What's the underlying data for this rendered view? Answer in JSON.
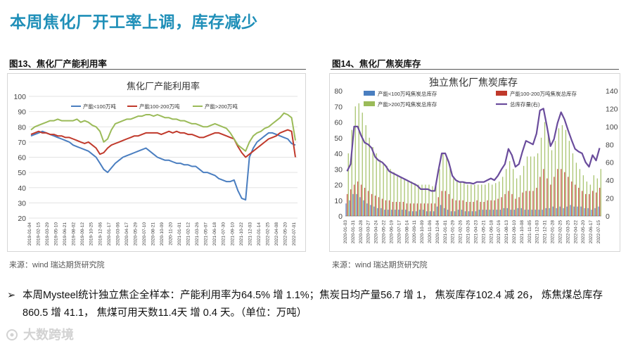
{
  "header": {
    "title": "本周焦化厂开工率上调，库存减少"
  },
  "figures": [
    {
      "caption": "图13、焦化厂产能利用率",
      "source": "来源：wind   瑞达期货研究院"
    },
    {
      "caption": "图14、焦化厂焦炭库存",
      "source": "来源：wind   瑞达期货研究院"
    }
  ],
  "bullet": {
    "line1": "本周Mysteel统计独立焦企全样本：产能利用率为64.5% 增 1.1%；焦炭日均产量56.7 增 1， 焦炭库存102.4 减 26， 炼焦煤总库存",
    "line2": "860.5 增 41.1， 焦煤可用天数11.4天 增 0.4 天。（单位：万吨）"
  },
  "watermark": "大数跨境",
  "chart_data": [
    {
      "type": "line",
      "title": "焦化厂产能利用率",
      "ylim": [
        20,
        100
      ],
      "yticks": [
        "20",
        "30",
        "40",
        "50",
        "60",
        "70",
        "80",
        "90",
        "100"
      ],
      "xticks": [
        "2019-01-04",
        "2019-02-15",
        "2019-03-29",
        "2019-05-10",
        "2019-06-21",
        "2019-08-02",
        "2019-09-12",
        "2019-10-25",
        "2019-12-06",
        "2020-01-17",
        "2020-03-06",
        "2020-04-17",
        "2020-05-29",
        "2020-07-10",
        "2020-08-21",
        "2020-10-09",
        "2020-11-20",
        "2021-01-01",
        "2021-02-12",
        "2021-03-26",
        "2021-05-07",
        "2021-06-18",
        "2021-07-30",
        "2021-09-10",
        "2021-10-22",
        "2021-12-03",
        "2022-01-14",
        "2022-02-25",
        "2022-04-08",
        "2022-05-20",
        "2022-07-01"
      ],
      "series": [
        {
          "name": "产能<100万吨",
          "color": "#4a7ec0",
          "values": [
            74,
            75,
            76,
            77,
            76,
            75,
            74,
            73,
            72,
            71,
            70,
            68,
            67,
            66,
            65,
            64,
            62,
            60,
            56,
            52,
            50,
            53,
            56,
            58,
            60,
            61,
            62,
            63,
            64,
            65,
            66,
            64,
            62,
            60,
            59,
            58,
            58,
            57,
            56,
            56,
            55,
            55,
            54,
            54,
            52,
            50,
            50,
            49,
            48,
            46,
            45,
            44,
            44,
            45,
            38,
            33,
            32,
            60,
            66,
            70,
            72,
            74,
            76,
            76,
            75,
            74,
            73,
            72,
            69,
            68
          ]
        },
        {
          "name": "产能100-200万吨",
          "color": "#c0392b",
          "values": [
            75,
            76,
            77,
            76,
            76,
            75,
            75,
            74,
            74,
            73,
            73,
            72,
            71,
            70,
            69,
            70,
            68,
            66,
            62,
            63,
            66,
            68,
            69,
            70,
            71,
            72,
            73,
            74,
            74,
            75,
            76,
            76,
            76,
            76,
            75,
            76,
            77,
            76,
            77,
            76,
            76,
            75,
            75,
            74,
            73,
            73,
            74,
            75,
            76,
            76,
            75,
            74,
            73,
            72,
            67,
            63,
            60,
            62,
            64,
            66,
            68,
            70,
            72,
            73,
            74,
            76,
            77,
            78,
            77,
            60
          ]
        },
        {
          "name": "产能>200万吨",
          "color": "#9bbb59",
          "values": [
            78,
            80,
            81,
            82,
            83,
            84,
            84,
            85,
            84,
            84,
            84,
            84,
            85,
            83,
            84,
            83,
            81,
            80,
            77,
            70,
            72,
            78,
            82,
            83,
            84,
            85,
            85,
            86,
            87,
            87,
            88,
            88,
            87,
            88,
            87,
            86,
            86,
            85,
            85,
            84,
            84,
            83,
            82,
            82,
            81,
            80,
            80,
            81,
            82,
            81,
            80,
            79,
            76,
            72,
            68,
            66,
            64,
            70,
            74,
            76,
            77,
            79,
            80,
            82,
            84,
            86,
            89,
            88,
            86,
            71
          ]
        }
      ]
    },
    {
      "type": "bar",
      "title": "独立焦化厂焦炭库存",
      "ylim": [
        0,
        80
      ],
      "ylim_right": [
        0,
        140
      ],
      "yticks": [
        "0",
        "10",
        "20",
        "30",
        "40",
        "50",
        "60",
        "70",
        "80"
      ],
      "yticks_right": [
        "0",
        "20",
        "40",
        "60",
        "80",
        "100",
        "120",
        "140"
      ],
      "xticks": [
        "2020-01-03",
        "2020-01-31",
        "2020-02-28",
        "2020-03-27",
        "2020-04-24",
        "2020-05-22",
        "2020-06-19",
        "2020-07-17",
        "2020-08-14",
        "2020-09-11",
        "2020-10-09",
        "2020-11-06",
        "2020-12-04",
        "2021-01-01",
        "2021-01-29",
        "2021-02-26",
        "2021-03-26",
        "2021-04-23",
        "2021-05-21",
        "2021-06-18",
        "2021-07-16",
        "2021-08-13",
        "2021-09-10",
        "2021-10-08",
        "2021-11-05",
        "2021-12-03",
        "2021-12-31",
        "2022-01-28",
        "2022-02-25",
        "2022-03-25",
        "2022-04-22",
        "2022-05-20",
        "2022-06-17",
        "2022-07-15"
      ],
      "series": [
        {
          "name": "产能<100万吨焦炭总库存",
          "color": "#4a7ec0",
          "axis": "left",
          "values": [
            8,
            10,
            14,
            14,
            12,
            10,
            8,
            7,
            6,
            5,
            5,
            4,
            4,
            4,
            4,
            4,
            4,
            4,
            3,
            3,
            3,
            4,
            4,
            3,
            3,
            3,
            6,
            7,
            5,
            4,
            3,
            3,
            4,
            4,
            3,
            3,
            3,
            3,
            4,
            4,
            4,
            4,
            4,
            4,
            4,
            5,
            5,
            4,
            4,
            5,
            5,
            4,
            4,
            4,
            4,
            4,
            4,
            5,
            5,
            6,
            5,
            6,
            5,
            6,
            7,
            6,
            6,
            6,
            5,
            5,
            4,
            5,
            6
          ]
        },
        {
          "name": "产能100-200万吨焦炭总库存",
          "color": "#c0392b",
          "axis": "left",
          "values": [
            14,
            17,
            20,
            22,
            20,
            18,
            16,
            14,
            13,
            12,
            11,
            10,
            10,
            9,
            9,
            9,
            9,
            8,
            8,
            8,
            8,
            8,
            8,
            8,
            8,
            8,
            12,
            16,
            16,
            14,
            11,
            10,
            10,
            10,
            9,
            9,
            9,
            10,
            9,
            9,
            10,
            10,
            10,
            11,
            12,
            14,
            16,
            14,
            11,
            12,
            15,
            16,
            16,
            16,
            18,
            25,
            30,
            24,
            20,
            25,
            30,
            30,
            28,
            25,
            22,
            20,
            18,
            16,
            14,
            14,
            16,
            15,
            18
          ]
        },
        {
          "name": "产能>200万吨焦炭总库存",
          "color": "#9bbb59",
          "axis": "left",
          "values": [
            40,
            55,
            70,
            72,
            66,
            58,
            50,
            44,
            40,
            36,
            34,
            32,
            30,
            28,
            26,
            25,
            24,
            22,
            22,
            21,
            20,
            20,
            20,
            20,
            19,
            19,
            30,
            40,
            38,
            30,
            24,
            22,
            22,
            22,
            20,
            20,
            20,
            20,
            20,
            20,
            21,
            20,
            21,
            22,
            25,
            30,
            35,
            30,
            24,
            26,
            32,
            38,
            38,
            38,
            40,
            50,
            60,
            52,
            42,
            48,
            56,
            58,
            55,
            48,
            40,
            34,
            30,
            26,
            22,
            20,
            26,
            24,
            30
          ]
        },
        {
          "name": "总库存量(右)",
          "color": "#6a4c9c",
          "axis": "right",
          "values": [
            50,
            58,
            100,
            100,
            90,
            82,
            80,
            76,
            66,
            62,
            60,
            56,
            50,
            48,
            46,
            44,
            42,
            40,
            38,
            36,
            34,
            30,
            30,
            30,
            28,
            28,
            50,
            70,
            70,
            60,
            45,
            40,
            38,
            38,
            37,
            37,
            36,
            38,
            38,
            38,
            40,
            42,
            40,
            45,
            52,
            58,
            75,
            68,
            55,
            58,
            72,
            84,
            82,
            80,
            92,
            118,
            120,
            100,
            78,
            86,
            104,
            116,
            108,
            96,
            85,
            75,
            72,
            70,
            60,
            55,
            68,
            62,
            76
          ]
        }
      ]
    }
  ]
}
